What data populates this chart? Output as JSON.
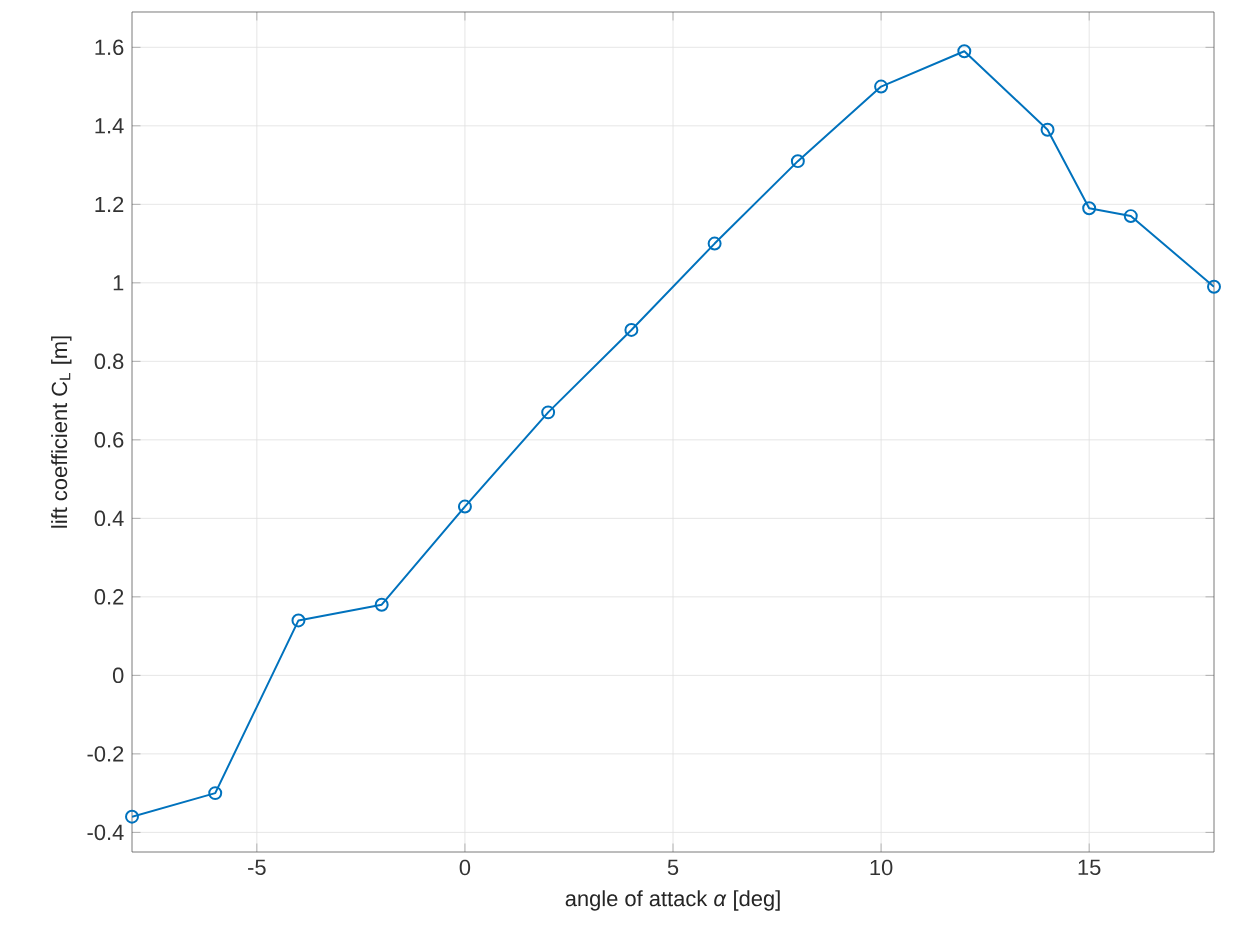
{
  "chart_data": {
    "type": "line",
    "xlabel": "angle of attack *α* [deg]",
    "ylabel": "lift coefficient C$_{L}$ [m]",
    "x": [
      -8,
      -6,
      -4,
      -2,
      0,
      2,
      4,
      6,
      8,
      10,
      12,
      14,
      15,
      16,
      18
    ],
    "series": [
      {
        "color": "#0072bd",
        "values": [
          -0.36,
          -0.3,
          0.14,
          0.18,
          0.43,
          0.67,
          0.88,
          1.1,
          1.31,
          1.5,
          1.59,
          1.39,
          1.19,
          1.17,
          0.99
        ]
      }
    ],
    "xlim": [
      -8,
      18
    ],
    "ylim": [
      -0.45,
      1.69
    ],
    "xticks": [
      -5,
      0,
      5,
      10,
      15
    ],
    "yticks": [
      -0.4,
      -0.2,
      0,
      0.2,
      0.4,
      0.6,
      0.8,
      1,
      1.2,
      1.4,
      1.6
    ],
    "grid": true,
    "marker": "circle",
    "line_style": "solid"
  }
}
